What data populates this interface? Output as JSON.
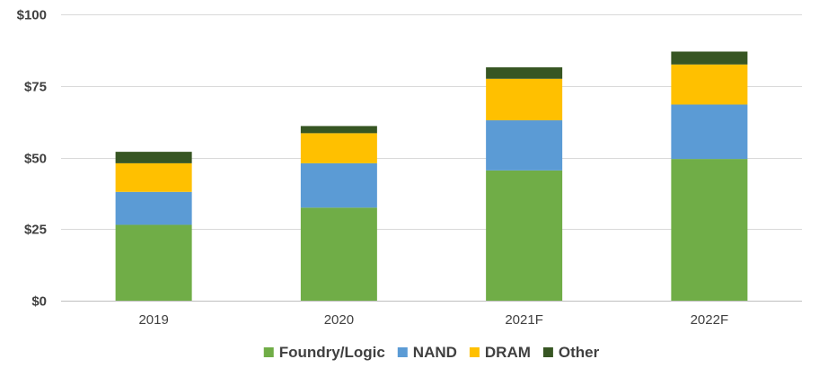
{
  "chart_data": {
    "type": "bar",
    "stacked": true,
    "categories": [
      "2019",
      "2020",
      "2021F",
      "2022F"
    ],
    "series": [
      {
        "name": "Foundry/Logic",
        "color": "#70ad47",
        "values": [
          26.5,
          32.5,
          45.5,
          49.5
        ]
      },
      {
        "name": "NAND",
        "color": "#5b9bd5",
        "values": [
          11.5,
          15.5,
          17.5,
          19.0
        ]
      },
      {
        "name": "DRAM",
        "color": "#ffc000",
        "values": [
          10.0,
          10.5,
          14.5,
          14.0
        ]
      },
      {
        "name": "Other",
        "color": "#375623",
        "values": [
          4.0,
          2.5,
          4.0,
          4.5
        ]
      }
    ],
    "ylim": [
      0,
      100
    ],
    "yticks": [
      {
        "value": 0,
        "label": "$0"
      },
      {
        "value": 25,
        "label": "$25"
      },
      {
        "value": 50,
        "label": "$50"
      },
      {
        "value": 75,
        "label": "$75"
      },
      {
        "value": 100,
        "label": "$100"
      }
    ],
    "title": "",
    "xlabel": "",
    "ylabel": "",
    "grid": true,
    "legend": "bottom"
  }
}
